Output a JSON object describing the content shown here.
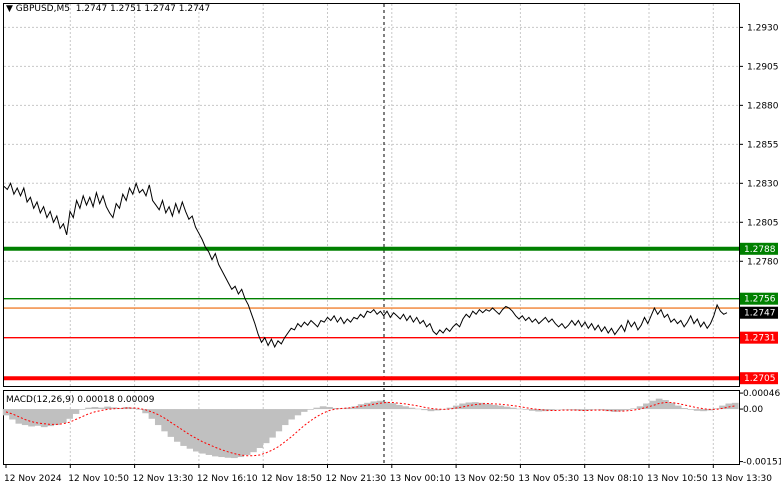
{
  "header": {
    "symbol_label": "GBPUSD,M5",
    "ohlc": "1.2747 1.2751 1.2747 1.2747"
  },
  "macd_header": {
    "label": "MACD(12,26,9) 0.00018 0.00009"
  },
  "colors": {
    "price_line": "#000000",
    "grid": "#c8c8c8",
    "green": "#008000",
    "red": "#ff0000",
    "orange": "#f08030",
    "macd_hist": "#c0c0c0",
    "macd_signal": "#ff0000"
  },
  "chart_data": [
    {
      "type": "line",
      "title": "",
      "y_ticks": [
        "1.2930",
        "1.2905",
        "1.2880",
        "1.2855",
        "1.2830",
        "1.2805",
        "1.2780"
      ],
      "x_ticks": [
        "12 Nov 2024",
        "12 Nov 10:50",
        "12 Nov 13:30",
        "12 Nov 16:10",
        "12 Nov 18:50",
        "12 Nov 21:30",
        "13 Nov 00:10",
        "13 Nov 02:50",
        "13 Nov 05:30",
        "13 Nov 08:10",
        "13 Nov 10:50",
        "13 Nov 13:30"
      ],
      "ylim": [
        1.27,
        1.2945
      ],
      "series": [
        {
          "values": [
            1.2828,
            1.2826,
            1.283,
            1.2823,
            1.2827,
            1.2822,
            1.2827,
            1.2818,
            1.2821,
            1.2814,
            1.2818,
            1.2811,
            1.2815,
            1.2808,
            1.2812,
            1.2805,
            1.2809,
            1.2801,
            1.2804,
            1.2797,
            1.2812,
            1.2808,
            1.2819,
            1.2814,
            1.2822,
            1.2816,
            1.2821,
            1.2815,
            1.2824,
            1.2817,
            1.2822,
            1.2815,
            1.2811,
            1.2808,
            1.2817,
            1.2814,
            1.2823,
            1.2819,
            1.2827,
            1.2823,
            1.283,
            1.2824,
            1.2826,
            1.2822,
            1.2829,
            1.2819,
            1.2816,
            1.2813,
            1.2819,
            1.2811,
            1.2815,
            1.2809,
            1.2817,
            1.2811,
            1.2818,
            1.2812,
            1.2807,
            1.2809,
            1.2802,
            1.2798,
            1.2794,
            1.2789,
            1.2786,
            1.2781,
            1.2785,
            1.2778,
            1.2774,
            1.277,
            1.2766,
            1.2762,
            1.2764,
            1.2759,
            1.2762,
            1.2756,
            1.2752,
            1.2746,
            1.274,
            1.2733,
            1.2728,
            1.2731,
            1.2726,
            1.273,
            1.2725,
            1.2729,
            1.2727,
            1.2731,
            1.2734,
            1.2737,
            1.2736,
            1.274,
            1.2738,
            1.2741,
            1.2739,
            1.2742,
            1.274,
            1.2738,
            1.2742,
            1.2741,
            1.2744,
            1.2742,
            1.2745,
            1.2741,
            1.2744,
            1.274,
            1.2743,
            1.2741,
            1.2744,
            1.2743,
            1.2746,
            1.2744,
            1.2748,
            1.2747,
            1.2749,
            1.2746,
            1.2748,
            1.2745,
            1.2748,
            1.2744,
            1.2747,
            1.2745,
            1.2743,
            1.2746,
            1.2742,
            1.2745,
            1.2741,
            1.2744,
            1.274,
            1.2742,
            1.2738,
            1.274,
            1.2735,
            1.2733,
            1.2736,
            1.2734,
            1.2737,
            1.2735,
            1.2738,
            1.274,
            1.2738,
            1.2743,
            1.2746,
            1.2744,
            1.2748,
            1.2746,
            1.2749,
            1.2747,
            1.2749,
            1.2748,
            1.275,
            1.2748,
            1.2746,
            1.2749,
            1.2751,
            1.275,
            1.2748,
            1.2745,
            1.2743,
            1.2745,
            1.2742,
            1.2744,
            1.2741,
            1.2743,
            1.274,
            1.2742,
            1.2744,
            1.2741,
            1.2743,
            1.274,
            1.2738,
            1.274,
            1.2737,
            1.2739,
            1.2742,
            1.2739,
            1.2742,
            1.2738,
            1.2741,
            1.2737,
            1.274,
            1.2736,
            1.2739,
            1.2735,
            1.2738,
            1.2734,
            1.2737,
            1.2733,
            1.2736,
            1.2739,
            1.2735,
            1.2742,
            1.2738,
            1.2741,
            1.2736,
            1.2739,
            1.2744,
            1.274,
            1.2745,
            1.275,
            1.2746,
            1.2749,
            1.2744,
            1.2746,
            1.2741,
            1.2743,
            1.274,
            1.2742,
            1.2738,
            1.2741,
            1.2745,
            1.274,
            1.2743,
            1.2738,
            1.2741,
            1.2737,
            1.274,
            1.2745,
            1.2752,
            1.2748,
            1.2746,
            1.2747
          ]
        }
      ],
      "horizontal_levels": [
        {
          "value": 1.2788,
          "label": "1.2788",
          "color": "#008000",
          "thick": true
        },
        {
          "value": 1.2756,
          "label": "1.2756",
          "color": "#008000",
          "thick": false
        },
        {
          "value": 1.275,
          "label": "",
          "color": "#f08030",
          "thick": false
        },
        {
          "value": 1.2747,
          "label": "1.2747",
          "color": "#000000",
          "thick": false,
          "current": true
        },
        {
          "value": 1.2731,
          "label": "1.2731",
          "color": "#ff0000",
          "thick": false
        },
        {
          "value": 1.2705,
          "label": "1.2705",
          "color": "#ff0000",
          "thick": true
        }
      ],
      "grid": true
    },
    {
      "type": "bar",
      "title": "",
      "y_ticks": [
        "0.00046",
        "0.00",
        "-0.00151"
      ],
      "ylim": [
        -0.00158,
        0.00052
      ],
      "histogram": [
        -0.00018,
        -0.0003,
        -0.00042,
        -0.00046,
        -0.0005,
        -0.00048,
        -0.00052,
        -0.00049,
        -0.00046,
        -0.0004,
        -0.00028,
        -0.00014,
        -2e-05,
        4e-05,
        6e-05,
        4e-05,
        7e-05,
        5e-05,
        3e-05,
        6e-05,
        4e-05,
        -2e-05,
        -0.00012,
        -0.00028,
        -0.00046,
        -0.00064,
        -0.0008,
        -0.00094,
        -0.00106,
        -0.00114,
        -0.00122,
        -0.00128,
        -0.00132,
        -0.00136,
        -0.00138,
        -0.0014,
        -0.00141,
        -0.00138,
        -0.00132,
        -0.00124,
        -0.00112,
        -0.00098,
        -0.00082,
        -0.00064,
        -0.00046,
        -0.0003,
        -0.00018,
        -8e-05,
        -2e-05,
        4e-05,
        8e-05,
        6e-05,
        3e-05,
        2e-05,
        4e-05,
        8e-05,
        0.00014,
        0.00018,
        0.00022,
        0.00024,
        0.00021,
        0.00017,
        0.00012,
        8e-05,
        4e-05,
        1e-05,
        -3e-05,
        -6e-05,
        -4e-05,
        -1e-05,
        4e-05,
        0.0001,
        0.00016,
        0.00019,
        0.0002,
        0.00018,
        0.00015,
        0.00012,
        0.0001,
        7e-05,
        4e-05,
        1e-05,
        -2e-05,
        -5e-05,
        -7e-05,
        -6e-05,
        -4e-05,
        -1e-05,
        0.0,
        -2e-05,
        -4e-05,
        -5e-05,
        -3e-05,
        -1e-05,
        -3e-05,
        -6e-05,
        -8e-05,
        -6e-05,
        -3e-05,
        2e-05,
        8e-05,
        0.00016,
        0.00024,
        0.0003,
        0.00026,
        0.00018,
        0.0001,
        3e-05,
        -2e-05,
        -5e-05,
        -6e-05,
        -4e-05,
        2e-05,
        0.0001,
        0.00016,
        0.00018
      ],
      "signal": [
        -8e-05,
        -0.00014,
        -0.00022,
        -0.0003,
        -0.00036,
        -0.0004,
        -0.00042,
        -0.00044,
        -0.00044,
        -0.00042,
        -0.00038,
        -0.0003,
        -0.00022,
        -0.00014,
        -8e-05,
        -4e-05,
        -1e-05,
        1e-05,
        2e-05,
        3e-05,
        3e-05,
        2e-05,
        -2e-05,
        -8e-05,
        -0.00016,
        -0.00026,
        -0.00038,
        -0.0005,
        -0.00062,
        -0.00074,
        -0.00084,
        -0.00094,
        -0.00102,
        -0.0011,
        -0.00117,
        -0.00123,
        -0.00128,
        -0.00132,
        -0.00134,
        -0.00134,
        -0.00132,
        -0.00126,
        -0.00118,
        -0.00108,
        -0.00094,
        -0.0008,
        -0.00064,
        -0.00048,
        -0.00034,
        -0.00022,
        -0.00012,
        -4e-05,
        0.0,
        2e-05,
        3e-05,
        5e-05,
        8e-05,
        0.00011,
        0.00014,
        0.00017,
        0.00019,
        0.00019,
        0.00017,
        0.00015,
        0.00012,
        9e-05,
        5e-05,
        2e-05,
        0.0,
        -1e-05,
        0.0,
        3e-05,
        6e-05,
        0.0001,
        0.00013,
        0.00015,
        0.00016,
        0.00015,
        0.00014,
        0.00012,
        0.0001,
        7e-05,
        4e-05,
        1e-05,
        -1e-05,
        -3e-05,
        -4e-05,
        -4e-05,
        -3e-05,
        -3e-05,
        -3e-05,
        -4e-05,
        -4e-05,
        -3e-05,
        -3e-05,
        -4e-05,
        -5e-05,
        -6e-05,
        -5e-05,
        -3e-05,
        0.0,
        5e-05,
        0.0001,
        0.00016,
        0.00019,
        0.00019,
        0.00016,
        0.00012,
        8e-05,
        4e-05,
        1e-05,
        -1e-05,
        -1e-05,
        2e-05,
        6e-05,
        9e-05
      ]
    }
  ]
}
